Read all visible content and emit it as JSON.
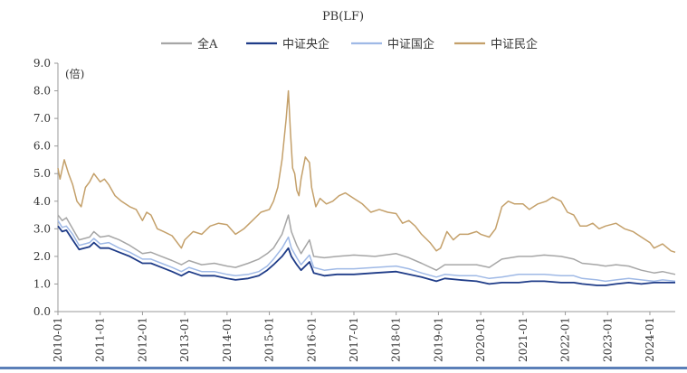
{
  "chart_data": {
    "type": "line",
    "title": "PB(LF)",
    "ylabel": "(倍)",
    "xlabel": "",
    "ylim": [
      0,
      9
    ],
    "yticks": [
      "0.0",
      "1.0",
      "2.0",
      "3.0",
      "4.0",
      "5.0",
      "6.0",
      "7.0",
      "8.0",
      "9.0"
    ],
    "xrange": [
      2010.0,
      2024.6
    ],
    "xticks": [
      {
        "label": "2010-01",
        "x": 2010.0
      },
      {
        "label": "2011-01",
        "x": 2011.0
      },
      {
        "label": "2012-01",
        "x": 2012.0
      },
      {
        "label": "2013-01",
        "x": 2013.0
      },
      {
        "label": "2014-01",
        "x": 2014.0
      },
      {
        "label": "2015-01",
        "x": 2015.0
      },
      {
        "label": "2016-01",
        "x": 2016.0
      },
      {
        "label": "2017-01",
        "x": 2017.0
      },
      {
        "label": "2018-01",
        "x": 2018.0
      },
      {
        "label": "2019-01",
        "x": 2019.0
      },
      {
        "label": "2020-01",
        "x": 2020.0
      },
      {
        "label": "2021-01",
        "x": 2021.0
      },
      {
        "label": "2022-01",
        "x": 2022.0
      },
      {
        "label": "2023-01",
        "x": 2023.0
      },
      {
        "label": "2024-01",
        "x": 2024.0
      }
    ],
    "legend_position": "top-center",
    "series": [
      {
        "name": "全A",
        "color": "#a6a6a6",
        "points": [
          [
            2010.0,
            3.5
          ],
          [
            2010.1,
            3.3
          ],
          [
            2010.2,
            3.4
          ],
          [
            2010.35,
            3.0
          ],
          [
            2010.5,
            2.6
          ],
          [
            2010.75,
            2.7
          ],
          [
            2010.85,
            2.9
          ],
          [
            2011.0,
            2.7
          ],
          [
            2011.2,
            2.75
          ],
          [
            2011.45,
            2.6
          ],
          [
            2011.7,
            2.4
          ],
          [
            2012.0,
            2.1
          ],
          [
            2012.2,
            2.15
          ],
          [
            2012.45,
            2.0
          ],
          [
            2012.7,
            1.85
          ],
          [
            2012.92,
            1.7
          ],
          [
            2013.1,
            1.85
          ],
          [
            2013.4,
            1.7
          ],
          [
            2013.7,
            1.75
          ],
          [
            2014.0,
            1.65
          ],
          [
            2014.2,
            1.6
          ],
          [
            2014.5,
            1.75
          ],
          [
            2014.75,
            1.9
          ],
          [
            2014.95,
            2.1
          ],
          [
            2015.1,
            2.3
          ],
          [
            2015.3,
            2.8
          ],
          [
            2015.45,
            3.5
          ],
          [
            2015.52,
            2.9
          ],
          [
            2015.65,
            2.4
          ],
          [
            2015.75,
            2.1
          ],
          [
            2015.95,
            2.6
          ],
          [
            2016.05,
            2.0
          ],
          [
            2016.3,
            1.95
          ],
          [
            2016.6,
            2.0
          ],
          [
            2017.0,
            2.05
          ],
          [
            2017.5,
            2.0
          ],
          [
            2018.0,
            2.1
          ],
          [
            2018.3,
            1.95
          ],
          [
            2018.6,
            1.75
          ],
          [
            2018.95,
            1.5
          ],
          [
            2019.15,
            1.7
          ],
          [
            2019.5,
            1.7
          ],
          [
            2019.9,
            1.7
          ],
          [
            2020.2,
            1.6
          ],
          [
            2020.5,
            1.9
          ],
          [
            2020.9,
            2.0
          ],
          [
            2021.2,
            2.0
          ],
          [
            2021.5,
            2.05
          ],
          [
            2021.9,
            2.0
          ],
          [
            2022.2,
            1.9
          ],
          [
            2022.4,
            1.75
          ],
          [
            2022.75,
            1.7
          ],
          [
            2022.95,
            1.65
          ],
          [
            2023.2,
            1.7
          ],
          [
            2023.5,
            1.65
          ],
          [
            2023.8,
            1.5
          ],
          [
            2024.1,
            1.4
          ],
          [
            2024.3,
            1.45
          ],
          [
            2024.6,
            1.35
          ]
        ]
      },
      {
        "name": "中证央企",
        "color": "#1f3c88",
        "points": [
          [
            2010.0,
            3.1
          ],
          [
            2010.1,
            2.9
          ],
          [
            2010.2,
            2.95
          ],
          [
            2010.35,
            2.6
          ],
          [
            2010.5,
            2.25
          ],
          [
            2010.75,
            2.35
          ],
          [
            2010.85,
            2.5
          ],
          [
            2011.0,
            2.3
          ],
          [
            2011.2,
            2.3
          ],
          [
            2011.45,
            2.15
          ],
          [
            2011.7,
            2.0
          ],
          [
            2012.0,
            1.75
          ],
          [
            2012.2,
            1.75
          ],
          [
            2012.45,
            1.6
          ],
          [
            2012.7,
            1.45
          ],
          [
            2012.92,
            1.3
          ],
          [
            2013.1,
            1.45
          ],
          [
            2013.4,
            1.3
          ],
          [
            2013.7,
            1.3
          ],
          [
            2014.0,
            1.2
          ],
          [
            2014.2,
            1.15
          ],
          [
            2014.5,
            1.2
          ],
          [
            2014.75,
            1.3
          ],
          [
            2014.95,
            1.5
          ],
          [
            2015.1,
            1.7
          ],
          [
            2015.3,
            2.0
          ],
          [
            2015.45,
            2.3
          ],
          [
            2015.52,
            2.0
          ],
          [
            2015.65,
            1.7
          ],
          [
            2015.75,
            1.5
          ],
          [
            2015.95,
            1.8
          ],
          [
            2016.05,
            1.4
          ],
          [
            2016.3,
            1.3
          ],
          [
            2016.6,
            1.35
          ],
          [
            2017.0,
            1.35
          ],
          [
            2017.5,
            1.4
          ],
          [
            2018.0,
            1.45
          ],
          [
            2018.3,
            1.35
          ],
          [
            2018.6,
            1.25
          ],
          [
            2018.95,
            1.1
          ],
          [
            2019.15,
            1.2
          ],
          [
            2019.5,
            1.15
          ],
          [
            2019.9,
            1.1
          ],
          [
            2020.2,
            1.0
          ],
          [
            2020.5,
            1.05
          ],
          [
            2020.9,
            1.05
          ],
          [
            2021.2,
            1.1
          ],
          [
            2021.5,
            1.1
          ],
          [
            2021.9,
            1.05
          ],
          [
            2022.2,
            1.05
          ],
          [
            2022.4,
            1.0
          ],
          [
            2022.75,
            0.95
          ],
          [
            2022.95,
            0.95
          ],
          [
            2023.2,
            1.0
          ],
          [
            2023.5,
            1.05
          ],
          [
            2023.8,
            1.0
          ],
          [
            2024.1,
            1.05
          ],
          [
            2024.3,
            1.05
          ],
          [
            2024.6,
            1.05
          ]
        ]
      },
      {
        "name": "中证国企",
        "color": "#9fb9e6",
        "points": [
          [
            2010.0,
            3.3
          ],
          [
            2010.1,
            3.05
          ],
          [
            2010.2,
            3.1
          ],
          [
            2010.35,
            2.8
          ],
          [
            2010.5,
            2.4
          ],
          [
            2010.75,
            2.5
          ],
          [
            2010.85,
            2.65
          ],
          [
            2011.0,
            2.45
          ],
          [
            2011.2,
            2.5
          ],
          [
            2011.45,
            2.3
          ],
          [
            2011.7,
            2.15
          ],
          [
            2012.0,
            1.9
          ],
          [
            2012.2,
            1.9
          ],
          [
            2012.45,
            1.75
          ],
          [
            2012.7,
            1.6
          ],
          [
            2012.92,
            1.45
          ],
          [
            2013.1,
            1.6
          ],
          [
            2013.4,
            1.45
          ],
          [
            2013.7,
            1.45
          ],
          [
            2014.0,
            1.35
          ],
          [
            2014.2,
            1.3
          ],
          [
            2014.5,
            1.35
          ],
          [
            2014.75,
            1.45
          ],
          [
            2014.95,
            1.65
          ],
          [
            2015.1,
            1.9
          ],
          [
            2015.3,
            2.3
          ],
          [
            2015.45,
            2.7
          ],
          [
            2015.52,
            2.3
          ],
          [
            2015.65,
            1.95
          ],
          [
            2015.75,
            1.7
          ],
          [
            2015.95,
            2.05
          ],
          [
            2016.05,
            1.6
          ],
          [
            2016.3,
            1.5
          ],
          [
            2016.6,
            1.55
          ],
          [
            2017.0,
            1.55
          ],
          [
            2017.5,
            1.6
          ],
          [
            2018.0,
            1.65
          ],
          [
            2018.3,
            1.55
          ],
          [
            2018.6,
            1.4
          ],
          [
            2018.95,
            1.25
          ],
          [
            2019.15,
            1.35
          ],
          [
            2019.5,
            1.3
          ],
          [
            2019.9,
            1.3
          ],
          [
            2020.2,
            1.2
          ],
          [
            2020.5,
            1.25
          ],
          [
            2020.9,
            1.35
          ],
          [
            2021.2,
            1.35
          ],
          [
            2021.5,
            1.35
          ],
          [
            2021.9,
            1.3
          ],
          [
            2022.2,
            1.3
          ],
          [
            2022.4,
            1.2
          ],
          [
            2022.75,
            1.15
          ],
          [
            2022.95,
            1.1
          ],
          [
            2023.2,
            1.15
          ],
          [
            2023.5,
            1.2
          ],
          [
            2023.8,
            1.15
          ],
          [
            2024.1,
            1.1
          ],
          [
            2024.3,
            1.15
          ],
          [
            2024.6,
            1.1
          ]
        ]
      },
      {
        "name": "中证民企",
        "color": "#c4a06a",
        "points": [
          [
            2010.0,
            5.2
          ],
          [
            2010.05,
            4.8
          ],
          [
            2010.15,
            5.5
          ],
          [
            2010.25,
            5.0
          ],
          [
            2010.35,
            4.6
          ],
          [
            2010.45,
            4.0
          ],
          [
            2010.55,
            3.8
          ],
          [
            2010.65,
            4.5
          ],
          [
            2010.75,
            4.7
          ],
          [
            2010.85,
            5.0
          ],
          [
            2011.0,
            4.7
          ],
          [
            2011.1,
            4.8
          ],
          [
            2011.2,
            4.6
          ],
          [
            2011.35,
            4.2
          ],
          [
            2011.5,
            4.0
          ],
          [
            2011.7,
            3.8
          ],
          [
            2011.85,
            3.7
          ],
          [
            2012.0,
            3.3
          ],
          [
            2012.1,
            3.6
          ],
          [
            2012.2,
            3.5
          ],
          [
            2012.35,
            3.0
          ],
          [
            2012.5,
            2.9
          ],
          [
            2012.7,
            2.75
          ],
          [
            2012.92,
            2.3
          ],
          [
            2013.0,
            2.6
          ],
          [
            2013.2,
            2.9
          ],
          [
            2013.4,
            2.8
          ],
          [
            2013.6,
            3.1
          ],
          [
            2013.8,
            3.2
          ],
          [
            2014.0,
            3.15
          ],
          [
            2014.2,
            2.8
          ],
          [
            2014.4,
            3.0
          ],
          [
            2014.6,
            3.3
          ],
          [
            2014.8,
            3.6
          ],
          [
            2015.0,
            3.7
          ],
          [
            2015.1,
            4.0
          ],
          [
            2015.2,
            4.5
          ],
          [
            2015.3,
            5.5
          ],
          [
            2015.4,
            7.0
          ],
          [
            2015.45,
            8.0
          ],
          [
            2015.5,
            6.5
          ],
          [
            2015.55,
            5.2
          ],
          [
            2015.6,
            5.0
          ],
          [
            2015.65,
            4.4
          ],
          [
            2015.7,
            4.2
          ],
          [
            2015.75,
            4.8
          ],
          [
            2015.85,
            5.6
          ],
          [
            2015.95,
            5.4
          ],
          [
            2016.0,
            4.5
          ],
          [
            2016.1,
            3.8
          ],
          [
            2016.2,
            4.1
          ],
          [
            2016.35,
            3.9
          ],
          [
            2016.5,
            4.0
          ],
          [
            2016.65,
            4.2
          ],
          [
            2016.8,
            4.3
          ],
          [
            2017.0,
            4.1
          ],
          [
            2017.2,
            3.9
          ],
          [
            2017.4,
            3.6
          ],
          [
            2017.6,
            3.7
          ],
          [
            2017.8,
            3.6
          ],
          [
            2018.0,
            3.55
          ],
          [
            2018.15,
            3.2
          ],
          [
            2018.3,
            3.3
          ],
          [
            2018.45,
            3.1
          ],
          [
            2018.6,
            2.8
          ],
          [
            2018.8,
            2.5
          ],
          [
            2018.95,
            2.2
          ],
          [
            2019.05,
            2.3
          ],
          [
            2019.2,
            2.9
          ],
          [
            2019.35,
            2.6
          ],
          [
            2019.5,
            2.8
          ],
          [
            2019.7,
            2.8
          ],
          [
            2019.9,
            2.9
          ],
          [
            2020.0,
            2.8
          ],
          [
            2020.2,
            2.7
          ],
          [
            2020.35,
            3.0
          ],
          [
            2020.5,
            3.8
          ],
          [
            2020.65,
            4.0
          ],
          [
            2020.8,
            3.9
          ],
          [
            2021.0,
            3.9
          ],
          [
            2021.15,
            3.7
          ],
          [
            2021.35,
            3.9
          ],
          [
            2021.55,
            4.0
          ],
          [
            2021.7,
            4.15
          ],
          [
            2021.9,
            4.0
          ],
          [
            2022.05,
            3.6
          ],
          [
            2022.2,
            3.5
          ],
          [
            2022.35,
            3.1
          ],
          [
            2022.5,
            3.1
          ],
          [
            2022.65,
            3.2
          ],
          [
            2022.8,
            3.0
          ],
          [
            2022.95,
            3.1
          ],
          [
            2023.2,
            3.2
          ],
          [
            2023.4,
            3.0
          ],
          [
            2023.6,
            2.9
          ],
          [
            2023.8,
            2.7
          ],
          [
            2024.0,
            2.5
          ],
          [
            2024.1,
            2.3
          ],
          [
            2024.3,
            2.45
          ],
          [
            2024.5,
            2.2
          ],
          [
            2024.6,
            2.15
          ]
        ]
      }
    ]
  }
}
